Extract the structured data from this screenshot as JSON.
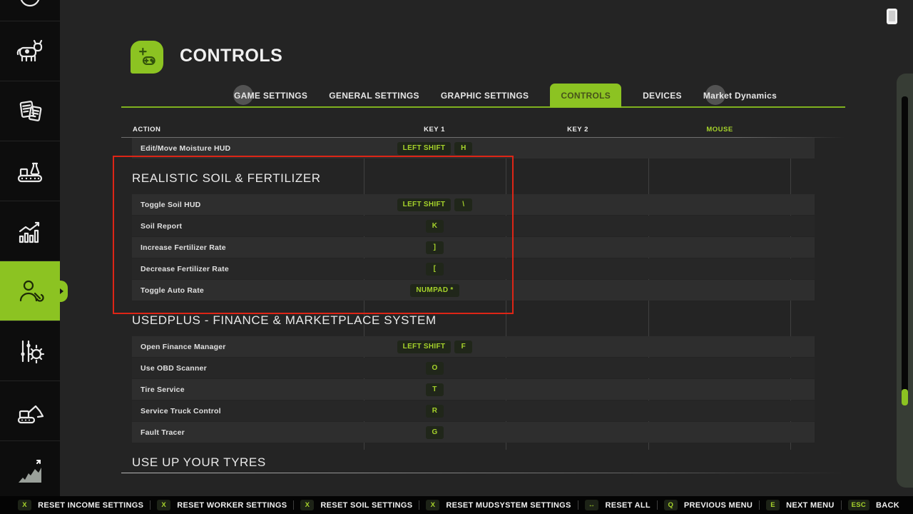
{
  "colors": {
    "accent": "#8cc322",
    "badge_text": "#a6d32b",
    "badge_bg": "#20261a",
    "highlight_red": "#dd2516",
    "row_light": "#2e2e2e",
    "row_dark": "#272727",
    "background": "#242424",
    "sidebar_bg": "#0a0a0a",
    "footer_bg": "#040404"
  },
  "header": {
    "title": "CONTROLS",
    "icon": "gamepad-icon"
  },
  "status": {
    "top_right_icon": "phone-icon"
  },
  "sidebar": {
    "items": [
      {
        "icon": "clock-icon",
        "active": false
      },
      {
        "icon": "cow-icon",
        "active": false
      },
      {
        "icon": "documents-icon",
        "active": false
      },
      {
        "icon": "production-icon",
        "active": false
      },
      {
        "icon": "statistics-icon",
        "active": false
      },
      {
        "icon": "player-icon",
        "active": true
      },
      {
        "icon": "tuning-icon",
        "active": false
      },
      {
        "icon": "excavator-icon",
        "active": false
      },
      {
        "icon": "terrain-icon",
        "active": false
      }
    ]
  },
  "tabs": [
    {
      "label": "GAME SETTINGS",
      "active": false
    },
    {
      "label": "GENERAL SETTINGS",
      "active": false
    },
    {
      "label": "GRAPHIC SETTINGS",
      "active": false
    },
    {
      "label": "CONTROLS",
      "active": true
    },
    {
      "label": "DEVICES",
      "active": false
    },
    {
      "label": "Market Dynamics",
      "active": false
    }
  ],
  "table": {
    "headers": [
      "ACTION",
      "KEY 1",
      "KEY 2",
      "MOUSE"
    ],
    "top_rows": [
      {
        "action": "Edit/Move Moisture HUD",
        "keys": [
          "LEFT SHIFT",
          "H"
        ]
      }
    ],
    "sections": [
      {
        "title": "REALISTIC SOIL & FERTILIZER",
        "highlighted": true,
        "rows": [
          {
            "action": "Toggle Soil HUD",
            "keys": [
              "LEFT SHIFT",
              "\\"
            ]
          },
          {
            "action": "Soil Report",
            "keys": [
              "K"
            ]
          },
          {
            "action": "Increase Fertilizer Rate",
            "keys": [
              "]"
            ]
          },
          {
            "action": "Decrease Fertilizer Rate",
            "keys": [
              "["
            ]
          },
          {
            "action": "Toggle Auto Rate",
            "keys": [
              "NUMPAD *"
            ]
          }
        ]
      },
      {
        "title": "USEDPLUS - FINANCE & MARKETPLACE SYSTEM",
        "highlighted": false,
        "rows": [
          {
            "action": "Open Finance Manager",
            "keys": [
              "LEFT SHIFT",
              "F"
            ]
          },
          {
            "action": "Use OBD Scanner",
            "keys": [
              "O"
            ]
          },
          {
            "action": "Tire Service",
            "keys": [
              "T"
            ]
          },
          {
            "action": "Service Truck Control",
            "keys": [
              "R"
            ]
          },
          {
            "action": "Fault Tracer",
            "keys": [
              "G"
            ]
          }
        ]
      },
      {
        "title": "USE UP YOUR TYRES",
        "highlighted": false,
        "underline": true,
        "rows": []
      }
    ]
  },
  "footer": {
    "items": [
      {
        "key": "X",
        "label": "RESET INCOME SETTINGS"
      },
      {
        "key": "X",
        "label": "RESET WORKER SETTINGS"
      },
      {
        "key": "X",
        "label": "RESET SOIL SETTINGS"
      },
      {
        "key": "X",
        "label": "RESET MUDSYSTEM SETTINGS"
      },
      {
        "key": "↔",
        "label": "RESET ALL"
      },
      {
        "key": "Q",
        "label": "PREVIOUS MENU"
      },
      {
        "key": "E",
        "label": "NEXT MENU"
      },
      {
        "key": "ESC",
        "label": "BACK"
      }
    ]
  }
}
